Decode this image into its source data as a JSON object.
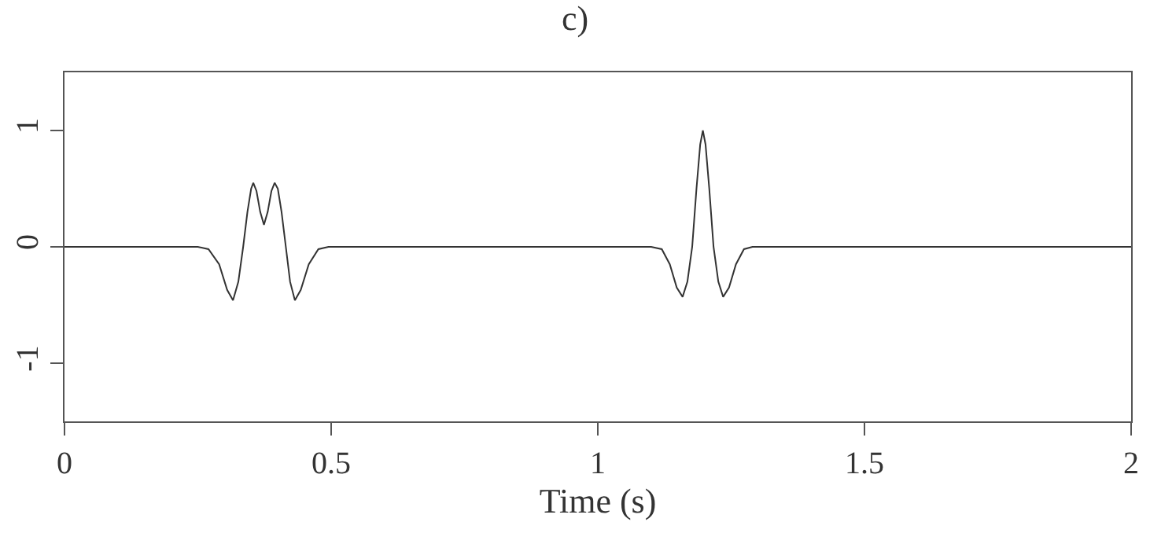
{
  "chart_data": {
    "type": "line",
    "title": "c)",
    "xlabel": "Time (s)",
    "x": [
      0,
      0.25,
      0.27,
      0.29,
      0.305,
      0.316,
      0.326,
      0.335,
      0.343,
      0.35,
      0.354,
      0.36,
      0.367,
      0.374,
      0.381,
      0.388,
      0.394,
      0.4,
      0.407,
      0.415,
      0.423,
      0.432,
      0.443,
      0.458,
      0.476,
      0.495,
      1.1,
      1.12,
      1.135,
      1.148,
      1.159,
      1.168,
      1.177,
      1.185,
      1.192,
      1.197,
      1.202,
      1.209,
      1.217,
      1.226,
      1.235,
      1.246,
      1.259,
      1.274,
      1.29,
      2
    ],
    "series": [
      {
        "color": "#333333",
        "values": [
          0,
          0,
          -0.02,
          -0.15,
          -0.37,
          -0.46,
          -0.3,
          0,
          0.3,
          0.5,
          0.55,
          0.48,
          0.3,
          0.19,
          0.3,
          0.48,
          0.55,
          0.5,
          0.3,
          0,
          -0.3,
          -0.46,
          -0.37,
          -0.15,
          -0.02,
          0,
          0,
          -0.02,
          -0.15,
          -0.35,
          -0.43,
          -0.3,
          0,
          0.5,
          0.88,
          1.0,
          0.88,
          0.5,
          0,
          -0.3,
          -0.43,
          -0.35,
          -0.15,
          -0.02,
          0,
          0
        ]
      }
    ],
    "xlim": [
      0,
      2
    ],
    "xticks": [
      0,
      0.5,
      1,
      1.5,
      2
    ],
    "ylim": [
      -1.5,
      1.5
    ],
    "yticks": [
      -1,
      0,
      1
    ],
    "legend": false,
    "marker": "none",
    "line_style": "solid"
  }
}
